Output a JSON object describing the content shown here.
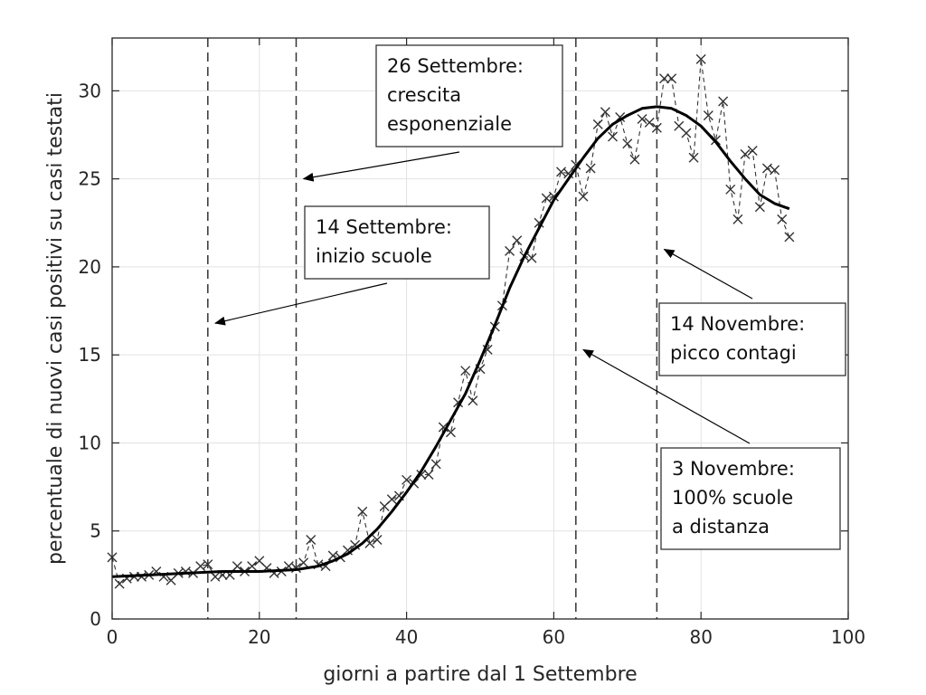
{
  "chart_data": {
    "type": "line",
    "title": "",
    "xlabel": "giorni a partire dal 1 Settembre",
    "ylabel": "percentuale di nuovi casi positivi su casi testati",
    "xlim": [
      0,
      100
    ],
    "ylim": [
      0,
      33
    ],
    "xticks": [
      0,
      20,
      40,
      60,
      80,
      100
    ],
    "yticks": [
      0,
      5,
      10,
      15,
      20,
      25,
      30
    ],
    "grid": true,
    "legend": "none",
    "vlines": [
      13,
      25,
      63,
      74
    ],
    "series": [
      {
        "style": "dashed-line-x-markers",
        "color": "#333333",
        "x": [
          0,
          1,
          2,
          3,
          4,
          5,
          6,
          7,
          8,
          9,
          10,
          11,
          12,
          13,
          14,
          15,
          16,
          17,
          18,
          19,
          20,
          21,
          22,
          23,
          24,
          25,
          26,
          27,
          28,
          29,
          30,
          31,
          32,
          33,
          34,
          35,
          36,
          37,
          38,
          39,
          40,
          41,
          42,
          43,
          44,
          45,
          46,
          47,
          48,
          49,
          50,
          51,
          52,
          53,
          54,
          55,
          56,
          57,
          58,
          59,
          60,
          61,
          62,
          63,
          64,
          65,
          66,
          67,
          68,
          69,
          70,
          71,
          72,
          73,
          74,
          75,
          76,
          77,
          78,
          79,
          80,
          81,
          82,
          83,
          84,
          85,
          86,
          87,
          88,
          89,
          90,
          91,
          92
        ],
        "y": [
          3.5,
          2.0,
          2.3,
          2.4,
          2.4,
          2.5,
          2.7,
          2.4,
          2.2,
          2.6,
          2.7,
          2.6,
          3.0,
          3.1,
          2.4,
          2.5,
          2.5,
          3.0,
          2.7,
          3.0,
          3.3,
          2.9,
          2.6,
          2.7,
          3.0,
          2.9,
          3.2,
          4.5,
          3.1,
          3.0,
          3.6,
          3.5,
          3.9,
          4.2,
          6.1,
          4.3,
          4.5,
          6.4,
          6.8,
          7.0,
          7.9,
          7.7,
          8.2,
          8.2,
          8.8,
          10.9,
          10.6,
          12.3,
          14.1,
          12.4,
          14.2,
          15.3,
          16.6,
          17.8,
          20.9,
          21.5,
          20.6,
          20.5,
          22.5,
          23.9,
          24.0,
          25.4,
          25.3,
          25.8,
          24.0,
          25.6,
          28.1,
          28.8,
          27.4,
          28.5,
          27.0,
          26.1,
          28.4,
          28.2,
          27.9,
          30.7,
          30.7,
          28.0,
          27.6,
          26.2,
          31.8,
          28.6,
          27.2,
          29.4,
          24.4,
          22.7,
          26.4,
          26.6,
          23.4,
          25.6,
          25.5,
          22.7,
          21.7
        ]
      },
      {
        "style": "solid-thick",
        "color": "#000000",
        "x": [
          0,
          5,
          10,
          15,
          20,
          25,
          28,
          30,
          32,
          34,
          36,
          38,
          40,
          42,
          44,
          46,
          48,
          50,
          52,
          54,
          56,
          58,
          60,
          62,
          64,
          66,
          68,
          70,
          72,
          74,
          76,
          78,
          80,
          82,
          84,
          86,
          88,
          90,
          92
        ],
        "y": [
          2.4,
          2.5,
          2.6,
          2.7,
          2.7,
          2.8,
          3.0,
          3.3,
          3.7,
          4.3,
          5.1,
          6.1,
          7.2,
          8.4,
          9.8,
          11.3,
          12.8,
          14.7,
          16.7,
          18.8,
          20.6,
          22.2,
          23.8,
          25.0,
          26.2,
          27.3,
          28.1,
          28.6,
          29.0,
          29.1,
          29.0,
          28.6,
          28.0,
          27.1,
          26.0,
          25.0,
          24.1,
          23.6,
          23.3
        ]
      }
    ],
    "annotations": [
      {
        "lines": [
          "26 Settembre:",
          "crescita",
          "esponenziale"
        ],
        "arrow_to": [
          26,
          25
        ]
      },
      {
        "lines": [
          "14 Settembre:",
          "inizio scuole"
        ],
        "arrow_to": [
          14,
          16.8
        ]
      },
      {
        "lines": [
          "14 Novembre:",
          "picco contagi"
        ],
        "arrow_to": [
          75,
          21
        ]
      },
      {
        "lines": [
          "3 Novembre:",
          "100% scuole",
          "a distanza"
        ],
        "arrow_to": [
          64,
          15.3
        ]
      }
    ]
  }
}
